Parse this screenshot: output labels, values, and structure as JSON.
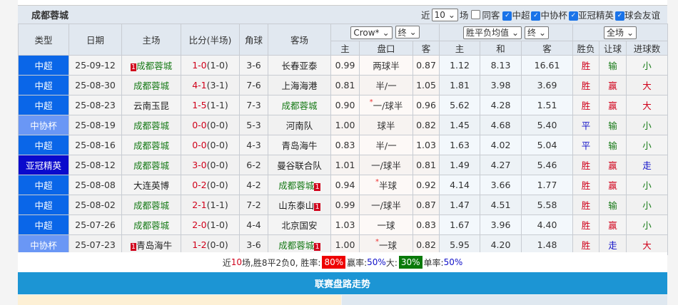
{
  "team": "成都蓉城",
  "filters": {
    "near": "近",
    "count": "10",
    "unit": "场",
    "same_away": "同客",
    "leagues": [
      "中超",
      "中协杯",
      "亚冠精英",
      "球会友谊"
    ]
  },
  "headers": {
    "type": "类型",
    "date": "日期",
    "home": "主场",
    "score": "比分(半场)",
    "corner": "角球",
    "away": "客场",
    "ah_company": "Crow*",
    "ah_stage": "终",
    "eu_type": "胜平负均值",
    "eu_stage": "终",
    "scope": "全场",
    "ah": [
      "主",
      "盘口",
      "客"
    ],
    "eu": [
      "主",
      "和",
      "客"
    ],
    "res": [
      "胜负",
      "让球",
      "进球数"
    ]
  },
  "colors": {
    "中超": "#0a66e8",
    "中协杯": "#6a97f5",
    "亚冠精英": "#0a0acc"
  },
  "rows": [
    {
      "type": "中超",
      "date": "25-09-12",
      "home": "成都蓉城",
      "home_badge": "1",
      "home_team": true,
      "ft": "1-0",
      "ht": "(1-0)",
      "corner": "3-6",
      "away": "长春亚泰",
      "away_team": false,
      "ah": [
        "0.99",
        "两球半",
        "0.87"
      ],
      "star": false,
      "eu": [
        "1.12",
        "8.13",
        "16.61"
      ],
      "r": [
        "胜",
        "输",
        "小"
      ]
    },
    {
      "type": "中超",
      "date": "25-08-30",
      "home": "成都蓉城",
      "home_team": true,
      "ft": "4-1",
      "ht": "(3-1)",
      "corner": "7-6",
      "away": "上海海港",
      "away_team": false,
      "ah": [
        "0.81",
        "半/一",
        "1.05"
      ],
      "star": false,
      "eu": [
        "1.81",
        "3.98",
        "3.69"
      ],
      "r": [
        "胜",
        "赢",
        "大"
      ]
    },
    {
      "type": "中超",
      "date": "25-08-23",
      "home": "云南玉昆",
      "home_team": false,
      "ft": "1-5",
      "ht": "(1-1)",
      "corner": "7-3",
      "away": "成都蓉城",
      "away_team": true,
      "ah": [
        "0.90",
        "一/球半",
        "0.96"
      ],
      "star": true,
      "eu": [
        "5.62",
        "4.28",
        "1.51"
      ],
      "r": [
        "胜",
        "赢",
        "大"
      ]
    },
    {
      "type": "中协杯",
      "date": "25-08-19",
      "home": "成都蓉城",
      "home_team": true,
      "ft": "0-0",
      "ht": "(0-0)",
      "corner": "5-3",
      "away": "河南队",
      "away_team": false,
      "ah": [
        "1.00",
        "球半",
        "0.82"
      ],
      "star": false,
      "eu": [
        "1.45",
        "4.68",
        "5.40"
      ],
      "r": [
        "平",
        "输",
        "小"
      ]
    },
    {
      "type": "中超",
      "date": "25-08-16",
      "home": "成都蓉城",
      "home_team": true,
      "ft": "0-0",
      "ht": "(0-0)",
      "corner": "4-3",
      "away": "青岛海牛",
      "away_team": false,
      "ah": [
        "0.83",
        "半/一",
        "1.03"
      ],
      "star": false,
      "eu": [
        "1.63",
        "4.02",
        "5.04"
      ],
      "r": [
        "平",
        "输",
        "小"
      ]
    },
    {
      "type": "亚冠精英",
      "date": "25-08-12",
      "home": "成都蓉城",
      "home_team": true,
      "ft": "3-0",
      "ht": "(0-0)",
      "corner": "6-2",
      "away": "曼谷联合队",
      "away_team": false,
      "ah": [
        "1.01",
        "一/球半",
        "0.81"
      ],
      "star": false,
      "eu": [
        "1.49",
        "4.27",
        "5.46"
      ],
      "r": [
        "胜",
        "赢",
        "走"
      ]
    },
    {
      "type": "中超",
      "date": "25-08-08",
      "home": "大连英博",
      "home_team": false,
      "ft": "0-2",
      "ht": "(0-0)",
      "corner": "4-2",
      "away": "成都蓉城",
      "away_badge": "1",
      "away_team": true,
      "ah": [
        "0.94",
        "半球",
        "0.92"
      ],
      "star": true,
      "eu": [
        "4.14",
        "3.66",
        "1.77"
      ],
      "r": [
        "胜",
        "赢",
        "小"
      ]
    },
    {
      "type": "中超",
      "date": "25-08-02",
      "home": "成都蓉城",
      "home_team": true,
      "ft": "2-1",
      "ht": "(1-1)",
      "corner": "7-2",
      "away": "山东泰山",
      "away_badge": "1",
      "away_team": false,
      "ah": [
        "0.99",
        "一/球半",
        "0.87"
      ],
      "star": false,
      "eu": [
        "1.47",
        "4.51",
        "5.58"
      ],
      "r": [
        "胜",
        "输",
        "小"
      ]
    },
    {
      "type": "中超",
      "date": "25-07-26",
      "home": "成都蓉城",
      "home_team": true,
      "ft": "2-0",
      "ht": "(1-0)",
      "corner": "4-4",
      "away": "北京国安",
      "away_team": false,
      "ah": [
        "1.03",
        "一球",
        "0.83"
      ],
      "star": false,
      "eu": [
        "1.67",
        "3.96",
        "4.40"
      ],
      "r": [
        "胜",
        "赢",
        "小"
      ]
    },
    {
      "type": "中协杯",
      "date": "25-07-23",
      "home": "青岛海牛",
      "home_badge": "1",
      "home_team": false,
      "ft": "1-2",
      "ht": "(0-0)",
      "corner": "3-6",
      "away": "成都蓉城",
      "away_badge": "1",
      "away_team": true,
      "ah": [
        "1.00",
        "一球",
        "0.82"
      ],
      "star": true,
      "eu": [
        "5.95",
        "4.20",
        "1.48"
      ],
      "r": [
        "胜",
        "走",
        "大"
      ]
    }
  ],
  "summary": {
    "p1": "近",
    "n": "10",
    "p2": "场,胜8平2负0, 胜率:",
    "win_rate": "80%",
    "p3": " 赢率:",
    "ah_rate": "50%",
    "p4": " 大:",
    "big_rate": "30%",
    "p5": " 单率:",
    "odd_rate": "50%"
  },
  "section_title": "联赛盘路走势"
}
